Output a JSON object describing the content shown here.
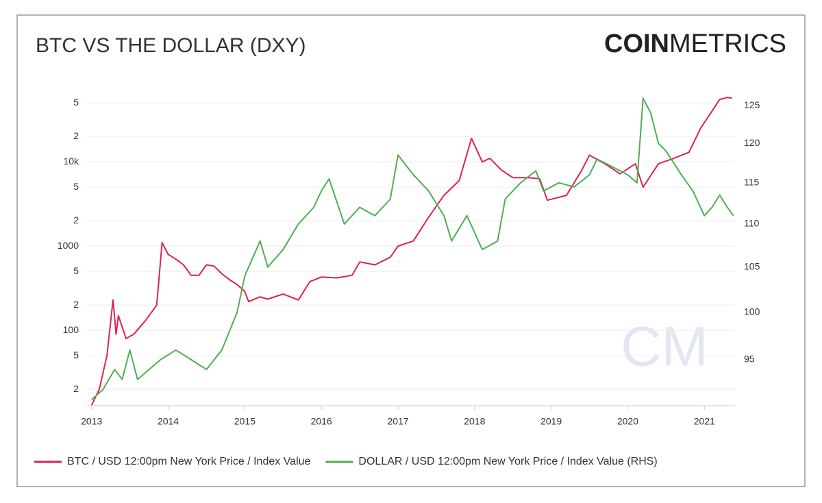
{
  "chart_data": {
    "type": "line",
    "title": "BTC VS THE DOLLAR (DXY)",
    "logo_bold": "COIN",
    "logo_light": "METRICS",
    "watermark": "CM",
    "log_scale": true,
    "y2_log_scale": true,
    "grid": true,
    "legend": "bottom",
    "xlim": [
      2012.94,
      2021.4
    ],
    "xticks": [
      2013,
      2014,
      2015,
      2016,
      2017,
      2018,
      2019,
      2020,
      2021
    ],
    "ylim": [
      12.8,
      64000
    ],
    "yticks": [
      {
        "value": 20,
        "label": "2"
      },
      {
        "value": 50,
        "label": "5"
      },
      100,
      {
        "value": 200,
        "label": "2"
      },
      {
        "value": 500,
        "label": "5"
      },
      1000,
      {
        "value": 2000,
        "label": "2"
      },
      {
        "value": 5000,
        "label": "5"
      },
      {
        "value": 10000,
        "label": "10k"
      },
      {
        "value": 20000,
        "label": "2"
      },
      {
        "value": 50000,
        "label": "5"
      }
    ],
    "y2lim": [
      90.4,
      126.6
    ],
    "y2ticks": [
      95,
      100,
      105,
      110,
      115,
      120,
      125
    ],
    "series": [
      {
        "name": "BTC / USD 12:00pm New York Price / Index Value",
        "color": "#e0204f",
        "x": [
          2013.0,
          2013.1,
          2013.2,
          2013.28,
          2013.32,
          2013.35,
          2013.45,
          2013.55,
          2013.7,
          2013.85,
          2013.92,
          2014.0,
          2014.1,
          2014.2,
          2014.3,
          2014.4,
          2014.5,
          2014.6,
          2014.7,
          2014.8,
          2014.9,
          2015.0,
          2015.05,
          2015.2,
          2015.3,
          2015.5,
          2015.7,
          2015.85,
          2016.0,
          2016.2,
          2016.4,
          2016.5,
          2016.7,
          2016.9,
          2017.0,
          2017.2,
          2017.4,
          2017.6,
          2017.8,
          2017.96,
          2018.1,
          2018.2,
          2018.35,
          2018.5,
          2018.7,
          2018.85,
          2018.95,
          2019.2,
          2019.4,
          2019.5,
          2019.7,
          2019.9,
          2020.1,
          2020.2,
          2020.4,
          2020.6,
          2020.8,
          2020.95,
          2021.1,
          2021.2,
          2021.3,
          2021.36
        ],
        "values": [
          13,
          20,
          50,
          230,
          90,
          150,
          80,
          90,
          130,
          200,
          1100,
          800,
          700,
          600,
          450,
          450,
          600,
          580,
          470,
          400,
          350,
          290,
          220,
          250,
          235,
          270,
          230,
          380,
          430,
          420,
          450,
          650,
          600,
          740,
          1000,
          1150,
          2200,
          4000,
          6000,
          19000,
          10000,
          11000,
          8000,
          6500,
          6500,
          6300,
          3500,
          4000,
          8000,
          12000,
          9500,
          7200,
          9500,
          5000,
          9500,
          11000,
          13000,
          25000,
          40000,
          55000,
          58000,
          57000
        ]
      },
      {
        "name": "DOLLAR / USD 12:00pm New York Price / Index Value (RHS)",
        "color": "#4caf50",
        "axis": "y2",
        "x": [
          2013.0,
          2013.15,
          2013.3,
          2013.4,
          2013.5,
          2013.6,
          2013.75,
          2013.9,
          2014.1,
          2014.3,
          2014.5,
          2014.7,
          2014.9,
          2015.0,
          2015.2,
          2015.3,
          2015.5,
          2015.7,
          2015.9,
          2016.0,
          2016.1,
          2016.3,
          2016.5,
          2016.7,
          2016.9,
          2017.0,
          2017.2,
          2017.4,
          2017.6,
          2017.7,
          2017.9,
          2018.0,
          2018.1,
          2018.3,
          2018.4,
          2018.6,
          2018.8,
          2018.9,
          2019.1,
          2019.3,
          2019.5,
          2019.6,
          2019.8,
          2020.0,
          2020.12,
          2020.2,
          2020.3,
          2020.4,
          2020.5,
          2020.7,
          2020.85,
          2021.0,
          2021.1,
          2021.2,
          2021.3,
          2021.38
        ],
        "values": [
          91,
          92,
          94,
          93,
          96,
          93,
          94,
          95,
          96,
          95,
          94,
          96,
          100,
          104,
          108,
          105,
          107,
          110,
          112,
          114,
          115.5,
          110,
          112,
          111,
          113,
          118.5,
          116,
          114,
          111,
          108,
          111,
          109,
          107,
          108,
          113,
          115,
          116.5,
          114,
          115,
          114.5,
          116,
          118,
          117,
          116,
          115,
          126,
          124,
          120,
          119,
          116,
          114,
          111,
          112,
          113.5,
          112,
          111
        ]
      }
    ]
  }
}
